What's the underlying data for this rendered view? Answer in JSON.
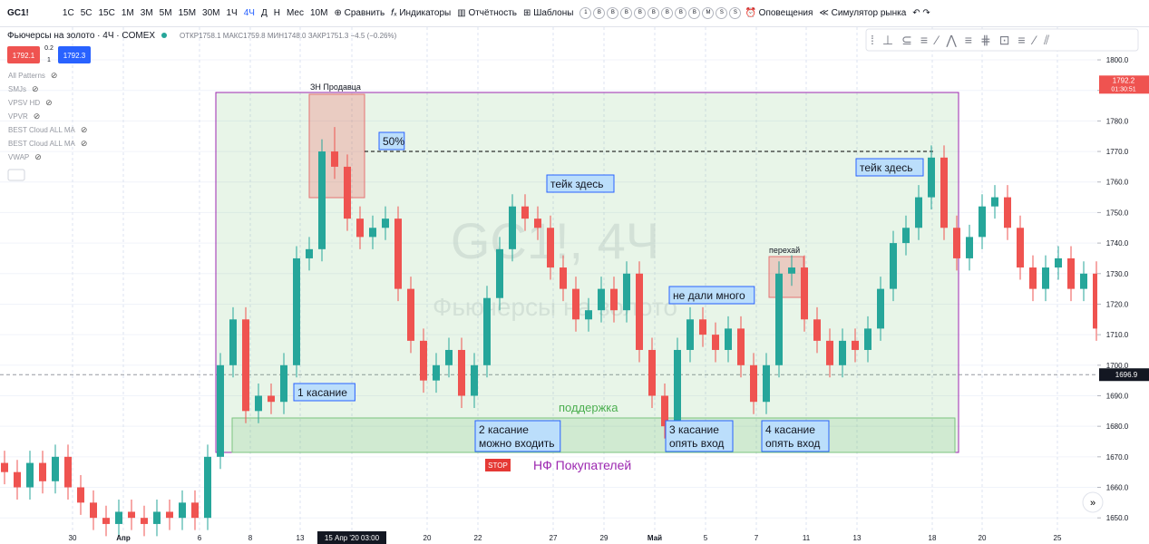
{
  "toolbar": {
    "symbol": "GC1!",
    "intervals": [
      "1С",
      "5С",
      "15С",
      "1М",
      "3М",
      "5М",
      "15М",
      "30М",
      "1Ч",
      "4Ч",
      "Д",
      "Н",
      "Мес",
      "10М"
    ],
    "compare": "Сравнить",
    "indicators": "Индикаторы",
    "reports": "Отчётность",
    "templates": "Шаблоны",
    "badges": [
      "1",
      "B",
      "B",
      "B",
      "B",
      "B",
      "B",
      "B",
      "B",
      "M",
      "S",
      "S"
    ],
    "alerts": "Оповещения",
    "simulator": "Симулятор рынка"
  },
  "header": {
    "name": "Фьючерсы на золото · 4Ч · COMEX",
    "ohlc": "ОТКР1758.1 МАКС1759.8 МИН1748.0 ЗАКР1751.3 −4.5 (−0.26%)",
    "bid": "1792.1",
    "spread": "0.2",
    "qty": "1",
    "ask": "1792.3"
  },
  "indicators": [
    "All Patterns",
    "SMJs",
    "VPSV HD",
    "VPVR",
    "BEST Cloud ALL MA",
    "BEST Cloud ALL MA",
    "VWAP"
  ],
  "watermark": {
    "symbol": "GC1!, 4Ч",
    "name": "Фьючерсы на золото"
  },
  "annotations": {
    "seller_zone": "ЗН Продавца",
    "fifty": "50%",
    "take1": "тейк здесь",
    "take2": "тейк здесь",
    "reclaim": "перехай",
    "not_much": "не дали много",
    "support": "поддержка",
    "touch1": "1 касание",
    "touch2": "2 касание\nможно входить",
    "touch3": "3 касание\nопять вход",
    "touch4": "4 касание\nопять вход",
    "stop": "STOP",
    "buyers": "НФ Покупателей"
  },
  "chart": {
    "ylim": [
      1645.9,
      1810.7
    ],
    "yticks": [
      1800.0,
      1790.0,
      1780.0,
      1770.0,
      1760.0,
      1750.0,
      1740.0,
      1730.0,
      1720.0,
      1710.0,
      1700.0,
      1690.0,
      1680.0,
      1670.0,
      1660.0,
      1650.0
    ],
    "ytick_labels": [
      "1800.0",
      "1790.0",
      "1780.0",
      "1770.0",
      "1760.0",
      "1750.0",
      "1740.0",
      "1730.0",
      "1720.0",
      "1710.0",
      "1700.0",
      "1690.0",
      "1680.0",
      "1670.0",
      "1660.0",
      "1650.0"
    ],
    "xlabels": [
      "30",
      "Апр",
      "6",
      "8",
      "13",
      "15 Апр '20  03:00",
      "20",
      "22",
      "27",
      "29",
      "Май",
      "5",
      "7",
      "11",
      "13",
      "18",
      "20",
      "25"
    ],
    "last_price": {
      "value": 1792.2,
      "label": "1792.2",
      "timer": "01:30:51"
    },
    "cross_price": {
      "value": 1696.9,
      "label": "1696.9"
    },
    "up_color": "#26a69a",
    "down_color": "#ef5350",
    "candles": [
      [
        1668,
        1672,
        1661,
        1665
      ],
      [
        1665,
        1669,
        1656,
        1660
      ],
      [
        1660,
        1672,
        1656,
        1668
      ],
      [
        1668,
        1672,
        1658,
        1662
      ],
      [
        1662,
        1674,
        1658,
        1670
      ],
      [
        1670,
        1674,
        1656,
        1660
      ],
      [
        1660,
        1664,
        1651,
        1655
      ],
      [
        1655,
        1659,
        1646,
        1650
      ],
      [
        1650,
        1654,
        1644,
        1648
      ],
      [
        1648,
        1656,
        1644,
        1652
      ],
      [
        1652,
        1656,
        1646,
        1650
      ],
      [
        1650,
        1654,
        1644,
        1648
      ],
      [
        1648,
        1656,
        1644,
        1652
      ],
      [
        1652,
        1656,
        1646,
        1650
      ],
      [
        1650,
        1659,
        1646,
        1655
      ],
      [
        1655,
        1659,
        1646,
        1650
      ],
      [
        1650,
        1674,
        1646,
        1670
      ],
      [
        1670,
        1704,
        1666,
        1700
      ],
      [
        1700,
        1719,
        1696,
        1715
      ],
      [
        1715,
        1719,
        1681,
        1685
      ],
      [
        1685,
        1694,
        1681,
        1690
      ],
      [
        1690,
        1694,
        1684,
        1688
      ],
      [
        1688,
        1704,
        1684,
        1700
      ],
      [
        1700,
        1739,
        1696,
        1735
      ],
      [
        1735,
        1742,
        1731,
        1738
      ],
      [
        1738,
        1774,
        1734,
        1770
      ],
      [
        1770,
        1778,
        1761,
        1765
      ],
      [
        1765,
        1769,
        1744,
        1748
      ],
      [
        1748,
        1752,
        1738,
        1742
      ],
      [
        1742,
        1749,
        1738,
        1745
      ],
      [
        1745,
        1752,
        1741,
        1748
      ],
      [
        1748,
        1752,
        1721,
        1725
      ],
      [
        1725,
        1729,
        1704,
        1708
      ],
      [
        1708,
        1712,
        1691,
        1695
      ],
      [
        1695,
        1704,
        1691,
        1700
      ],
      [
        1700,
        1709,
        1696,
        1705
      ],
      [
        1705,
        1709,
        1686,
        1690
      ],
      [
        1690,
        1704,
        1686,
        1700
      ],
      [
        1700,
        1726,
        1696,
        1722
      ],
      [
        1722,
        1742,
        1718,
        1738
      ],
      [
        1738,
        1756,
        1734,
        1752
      ],
      [
        1752,
        1756,
        1744,
        1748
      ],
      [
        1748,
        1752,
        1741,
        1745
      ],
      [
        1745,
        1749,
        1728,
        1732
      ],
      [
        1732,
        1736,
        1721,
        1725
      ],
      [
        1725,
        1729,
        1711,
        1715
      ],
      [
        1715,
        1722,
        1711,
        1718
      ],
      [
        1718,
        1729,
        1714,
        1725
      ],
      [
        1725,
        1729,
        1714,
        1718
      ],
      [
        1718,
        1734,
        1714,
        1730
      ],
      [
        1730,
        1734,
        1701,
        1705
      ],
      [
        1705,
        1709,
        1686,
        1690
      ],
      [
        1690,
        1694,
        1676,
        1680
      ],
      [
        1680,
        1709,
        1676,
        1705
      ],
      [
        1705,
        1719,
        1701,
        1715
      ],
      [
        1715,
        1719,
        1706,
        1710
      ],
      [
        1710,
        1714,
        1701,
        1705
      ],
      [
        1705,
        1716,
        1701,
        1712
      ],
      [
        1712,
        1716,
        1696,
        1700
      ],
      [
        1700,
        1704,
        1684,
        1688
      ],
      [
        1688,
        1704,
        1684,
        1700
      ],
      [
        1700,
        1734,
        1696,
        1730
      ],
      [
        1730,
        1736,
        1726,
        1732
      ],
      [
        1732,
        1736,
        1711,
        1715
      ],
      [
        1715,
        1719,
        1704,
        1708
      ],
      [
        1708,
        1712,
        1696,
        1700
      ],
      [
        1700,
        1712,
        1696,
        1708
      ],
      [
        1708,
        1712,
        1701,
        1705
      ],
      [
        1705,
        1716,
        1701,
        1712
      ],
      [
        1712,
        1729,
        1708,
        1725
      ],
      [
        1725,
        1744,
        1721,
        1740
      ],
      [
        1740,
        1749,
        1736,
        1745
      ],
      [
        1745,
        1759,
        1741,
        1755
      ],
      [
        1755,
        1772,
        1751,
        1768
      ],
      [
        1768,
        1772,
        1741,
        1745
      ],
      [
        1745,
        1749,
        1731,
        1735
      ],
      [
        1735,
        1746,
        1731,
        1742
      ],
      [
        1742,
        1756,
        1738,
        1752
      ],
      [
        1752,
        1759,
        1748,
        1755
      ],
      [
        1755,
        1759,
        1741,
        1745
      ],
      [
        1745,
        1749,
        1728,
        1732
      ],
      [
        1732,
        1736,
        1721,
        1725
      ],
      [
        1725,
        1736,
        1721,
        1732
      ],
      [
        1732,
        1739,
        1728,
        1735
      ],
      [
        1735,
        1739,
        1721,
        1725
      ],
      [
        1725,
        1734,
        1721,
        1730
      ],
      [
        1730,
        1734,
        1708,
        1712
      ],
      [
        1712,
        1716,
        1698,
        1702
      ]
    ]
  }
}
